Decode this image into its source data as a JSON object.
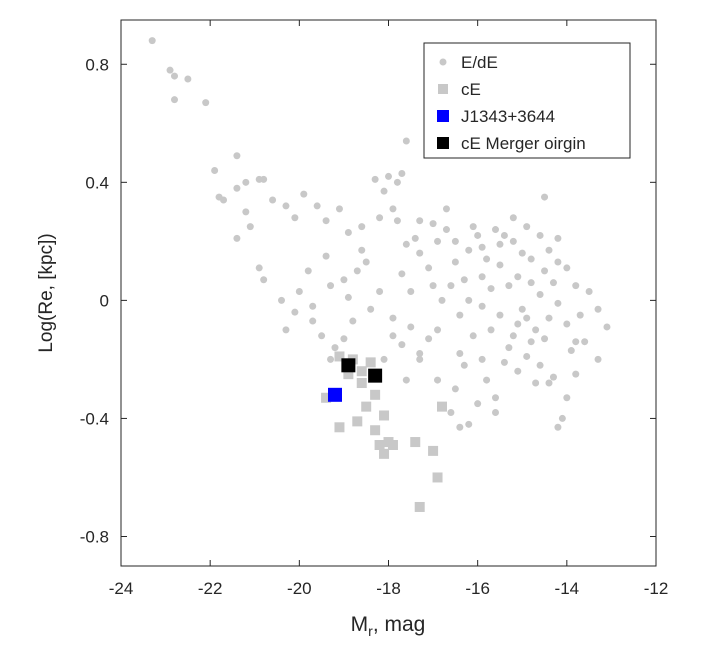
{
  "chart_data": {
    "type": "scatter",
    "title": "",
    "xlabel_main": "M",
    "xlabel_sub": "r",
    "xlabel_rest": ", mag",
    "ylabel": "Log(Re, [kpc])",
    "xlim": [
      -24,
      -12
    ],
    "ylim": [
      -0.9,
      0.95
    ],
    "xticks": [
      -24,
      -22,
      -20,
      -18,
      -16,
      -14,
      -12
    ],
    "xtick_labels": [
      "-24",
      "-22",
      "-20",
      "-18",
      "-16",
      "-14",
      "-12"
    ],
    "yticks": [
      0.8,
      0.4,
      0,
      -0.4,
      -0.8
    ],
    "ytick_labels": [
      "0.8",
      "0.4",
      "0",
      "-0.4",
      "-0.8"
    ],
    "grid": false,
    "legend_position": "top-right",
    "colors": {
      "ede": "#c8c8c8",
      "ce": "#c8c8c8",
      "j1343": "#0000ff",
      "merger": "#000000"
    },
    "series": [
      {
        "name": "E/dE",
        "marker": "circle",
        "points": [
          [
            -23.3,
            0.88
          ],
          [
            -22.9,
            0.78
          ],
          [
            -22.8,
            0.76
          ],
          [
            -22.5,
            0.75
          ],
          [
            -22.8,
            0.68
          ],
          [
            -22.1,
            0.67
          ],
          [
            -21.9,
            0.44
          ],
          [
            -21.8,
            0.35
          ],
          [
            -21.7,
            0.34
          ],
          [
            -21.4,
            0.49
          ],
          [
            -21.4,
            0.38
          ],
          [
            -21.2,
            0.4
          ],
          [
            -20.9,
            0.41
          ],
          [
            -20.8,
            0.41
          ],
          [
            -20.6,
            0.34
          ],
          [
            -21.2,
            0.3
          ],
          [
            -21.1,
            0.25
          ],
          [
            -21.4,
            0.21
          ],
          [
            -20.8,
            0.07
          ],
          [
            -20.9,
            0.11
          ],
          [
            -20.3,
            0.32
          ],
          [
            -20.1,
            0.28
          ],
          [
            -19.9,
            0.36
          ],
          [
            -19.6,
            0.32
          ],
          [
            -19.4,
            0.27
          ],
          [
            -19.1,
            0.31
          ],
          [
            -18.9,
            0.23
          ],
          [
            -18.6,
            0.25
          ],
          [
            -18.2,
            0.28
          ],
          [
            -18.1,
            0.37
          ],
          [
            -17.9,
            0.31
          ],
          [
            -17.8,
            0.27
          ],
          [
            -18.5,
            0.13
          ],
          [
            -18.7,
            0.1
          ],
          [
            -19.0,
            0.07
          ],
          [
            -19.3,
            0.05
          ],
          [
            -19.8,
            0.1
          ],
          [
            -20.0,
            0.03
          ],
          [
            -20.1,
            -0.04
          ],
          [
            -19.7,
            -0.02
          ],
          [
            -20.4,
            0.0
          ],
          [
            -20.3,
            -0.1
          ],
          [
            -19.5,
            -0.12
          ],
          [
            -19.2,
            -0.16
          ],
          [
            -19.3,
            -0.2
          ],
          [
            -19.0,
            -0.13
          ],
          [
            -18.8,
            -0.07
          ],
          [
            -18.4,
            -0.03
          ],
          [
            -18.2,
            0.03
          ],
          [
            -17.9,
            -0.06
          ],
          [
            -17.7,
            0.09
          ],
          [
            -17.5,
            0.03
          ],
          [
            -17.3,
            0.16
          ],
          [
            -17.1,
            0.11
          ],
          [
            -16.9,
            0.2
          ],
          [
            -16.7,
            0.24
          ],
          [
            -16.5,
            0.13
          ],
          [
            -16.3,
            0.07
          ],
          [
            -16.1,
            0.25
          ],
          [
            -15.9,
            0.18
          ],
          [
            -15.8,
            0.14
          ],
          [
            -15.6,
            0.24
          ],
          [
            -15.4,
            0.22
          ],
          [
            -15.2,
            0.2
          ],
          [
            -15.0,
            0.16
          ],
          [
            -14.8,
            0.14
          ],
          [
            -14.6,
            0.22
          ],
          [
            -14.4,
            0.17
          ],
          [
            -14.2,
            0.21
          ],
          [
            -14.0,
            0.11
          ],
          [
            -13.8,
            0.05
          ],
          [
            -13.5,
            0.03
          ],
          [
            -13.3,
            -0.03
          ],
          [
            -13.1,
            -0.09
          ],
          [
            -13.3,
            -0.2
          ],
          [
            -13.6,
            -0.14
          ],
          [
            -13.8,
            -0.25
          ],
          [
            -14.0,
            -0.33
          ],
          [
            -14.2,
            -0.43
          ],
          [
            -14.1,
            -0.4
          ],
          [
            -14.4,
            -0.28
          ],
          [
            -14.6,
            -0.22
          ],
          [
            -14.8,
            -0.14
          ],
          [
            -15.1,
            -0.08
          ],
          [
            -15.3,
            -0.16
          ],
          [
            -15.5,
            -0.05
          ],
          [
            -15.7,
            0.04
          ],
          [
            -15.9,
            -0.02
          ],
          [
            -16.1,
            -0.12
          ],
          [
            -16.3,
            -0.22
          ],
          [
            -16.5,
            -0.3
          ],
          [
            -16.6,
            -0.38
          ],
          [
            -16.4,
            -0.43
          ],
          [
            -16.2,
            -0.42
          ],
          [
            -16.0,
            -0.35
          ],
          [
            -15.8,
            -0.27
          ],
          [
            -15.6,
            -0.33
          ],
          [
            -15.4,
            -0.21
          ],
          [
            -15.2,
            -0.12
          ],
          [
            -15.0,
            -0.03
          ],
          [
            -14.8,
            0.06
          ],
          [
            -14.6,
            0.02
          ],
          [
            -14.4,
            -0.06
          ],
          [
            -14.2,
            -0.01
          ],
          [
            -14.0,
            -0.08
          ],
          [
            -13.8,
            -0.14
          ],
          [
            -16.8,
            0.0
          ],
          [
            -16.9,
            -0.1
          ],
          [
            -17.1,
            -0.13
          ],
          [
            -17.3,
            -0.18
          ],
          [
            -17.5,
            -0.09
          ],
          [
            -17.7,
            -0.15
          ],
          [
            -17.9,
            -0.12
          ],
          [
            -18.1,
            -0.2
          ],
          [
            -17.0,
            0.05
          ],
          [
            -16.6,
            0.05
          ],
          [
            -16.4,
            -0.05
          ],
          [
            -16.2,
            0.0
          ],
          [
            -15.9,
            0.08
          ],
          [
            -15.7,
            -0.1
          ],
          [
            -15.5,
            0.12
          ],
          [
            -15.3,
            0.05
          ],
          [
            -15.1,
            0.08
          ],
          [
            -14.9,
            -0.06
          ],
          [
            -14.7,
            -0.1
          ],
          [
            -14.5,
            0.1
          ],
          [
            -14.3,
            0.06
          ],
          [
            -15.2,
            0.28
          ],
          [
            -14.5,
            0.35
          ],
          [
            -16.7,
            0.31
          ],
          [
            -17.6,
            0.54
          ],
          [
            -17.7,
            0.43
          ],
          [
            -17.8,
            0.4
          ],
          [
            -18.0,
            0.42
          ],
          [
            -18.3,
            0.41
          ],
          [
            -17.4,
            0.21
          ],
          [
            -17.6,
            0.19
          ],
          [
            -17.3,
            0.27
          ],
          [
            -16.4,
            -0.18
          ],
          [
            -15.9,
            -0.2
          ],
          [
            -15.1,
            -0.24
          ],
          [
            -14.9,
            -0.19
          ],
          [
            -14.7,
            -0.28
          ],
          [
            -14.3,
            -0.26
          ],
          [
            -13.9,
            -0.17
          ],
          [
            -13.7,
            -0.05
          ],
          [
            -16.9,
            -0.27
          ],
          [
            -17.6,
            -0.27
          ],
          [
            -17.3,
            -0.2
          ],
          [
            -15.6,
            -0.38
          ],
          [
            -14.5,
            -0.13
          ],
          [
            -16.2,
            0.17
          ],
          [
            -16.0,
            0.22
          ],
          [
            -15.5,
            0.19
          ],
          [
            -14.9,
            0.25
          ],
          [
            -14.2,
            0.13
          ],
          [
            -16.5,
            0.2
          ],
          [
            -17.0,
            0.26
          ],
          [
            -18.6,
            0.17
          ],
          [
            -19.4,
            0.15
          ],
          [
            -18.9,
            0.01
          ],
          [
            -19.7,
            -0.07
          ]
        ]
      },
      {
        "name": "cE",
        "marker": "square",
        "points": [
          [
            -19.1,
            -0.19
          ],
          [
            -18.9,
            -0.25
          ],
          [
            -18.6,
            -0.28
          ],
          [
            -18.3,
            -0.32
          ],
          [
            -18.5,
            -0.36
          ],
          [
            -18.1,
            -0.39
          ],
          [
            -18.3,
            -0.44
          ],
          [
            -18.0,
            -0.48
          ],
          [
            -18.2,
            -0.49
          ],
          [
            -18.1,
            -0.52
          ],
          [
            -17.9,
            -0.49
          ],
          [
            -18.7,
            -0.41
          ],
          [
            -19.1,
            -0.43
          ],
          [
            -19.4,
            -0.33
          ],
          [
            -17.4,
            -0.48
          ],
          [
            -17.0,
            -0.51
          ],
          [
            -16.9,
            -0.6
          ],
          [
            -17.3,
            -0.7
          ],
          [
            -16.8,
            -0.36
          ],
          [
            -18.8,
            -0.2
          ],
          [
            -18.6,
            -0.24
          ],
          [
            -18.4,
            -0.21
          ]
        ]
      },
      {
        "name": "J1343+3644",
        "marker": "square",
        "points": [
          [
            -19.2,
            -0.32
          ]
        ]
      },
      {
        "name": "cE Merger oirgin",
        "marker": "square",
        "points": [
          [
            -18.9,
            -0.22
          ],
          [
            -18.3,
            -0.255
          ]
        ]
      }
    ]
  }
}
